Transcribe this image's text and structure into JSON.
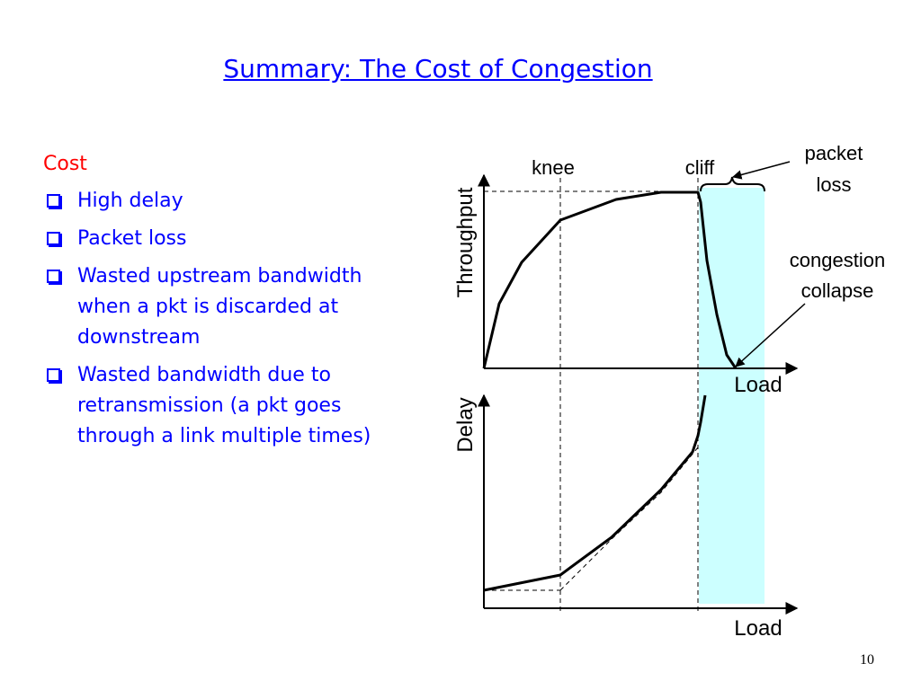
{
  "slide": {
    "title": "Summary: The Cost of Congestion",
    "page_number": "10"
  },
  "left": {
    "heading": "Cost",
    "bullets": [
      "High delay",
      "Packet loss",
      "Wasted upstream bandwidth when a pkt is discarded at downstream",
      "Wasted bandwidth due to retransmission (a pkt goes through a link multiple times)"
    ]
  },
  "diagram": {
    "labels": {
      "knee": "knee",
      "cliff": "cliff",
      "packet_loss_line1": "packet",
      "packet_loss_line2": "loss",
      "collapse_line1": "congestion",
      "collapse_line2": "collapse"
    },
    "top_plot": {
      "ylabel": "Throughput",
      "xlabel": "Load"
    },
    "bottom_plot": {
      "ylabel": "Delay",
      "xlabel": "Load"
    },
    "colors": {
      "congestion_region": "#ccffff",
      "text_blue": "#0000ff",
      "heading_red": "#ff0000"
    }
  }
}
